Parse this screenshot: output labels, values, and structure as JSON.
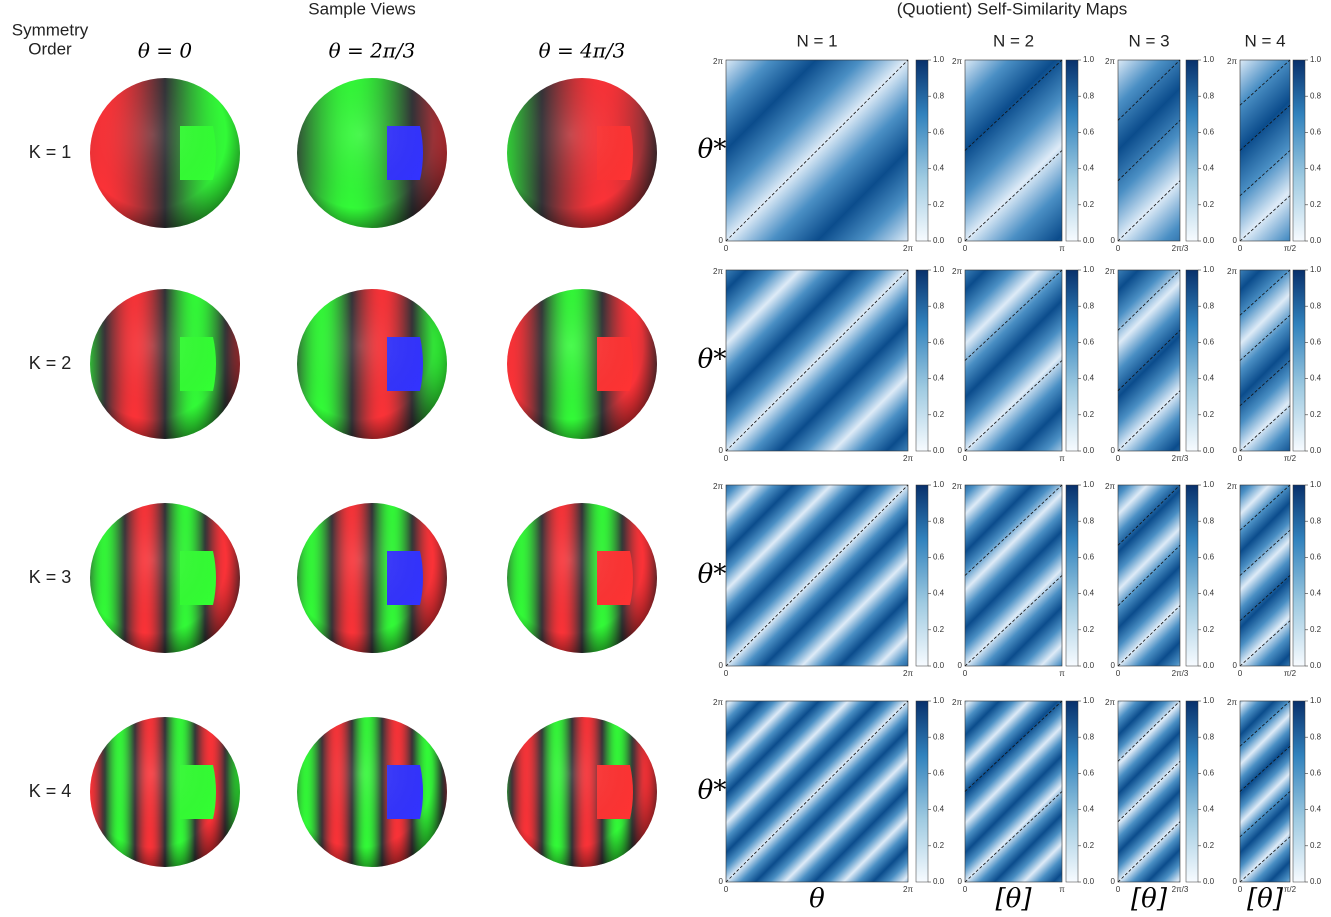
{
  "left": {
    "title": "Sample Views",
    "row_header": [
      "Symmetry",
      "Order"
    ],
    "columns": [
      "θ = 0",
      "θ = 2π/3",
      "θ = 4π/3"
    ],
    "rows": [
      "K = 1",
      "K = 2",
      "K = 3",
      "K = 4"
    ]
  },
  "right": {
    "title": "(Quotient) Self-Similarity Maps",
    "columns": [
      "N = 1",
      "N = 2",
      "N = 3",
      "N = 4"
    ],
    "y_label": "θ*",
    "x_labels": [
      "θ",
      "[θ]",
      "[θ]",
      "[θ]"
    ],
    "y_ticks": [
      "0",
      "2π"
    ],
    "x_ticks": [
      [
        "0",
        "2π"
      ],
      [
        "0",
        "π"
      ],
      [
        "0",
        "2π/3"
      ],
      [
        "0",
        "π/2"
      ]
    ],
    "colorbar_ticks": [
      "0.0",
      "0.2",
      "0.4",
      "0.6",
      "0.8",
      "1.0"
    ]
  }
}
